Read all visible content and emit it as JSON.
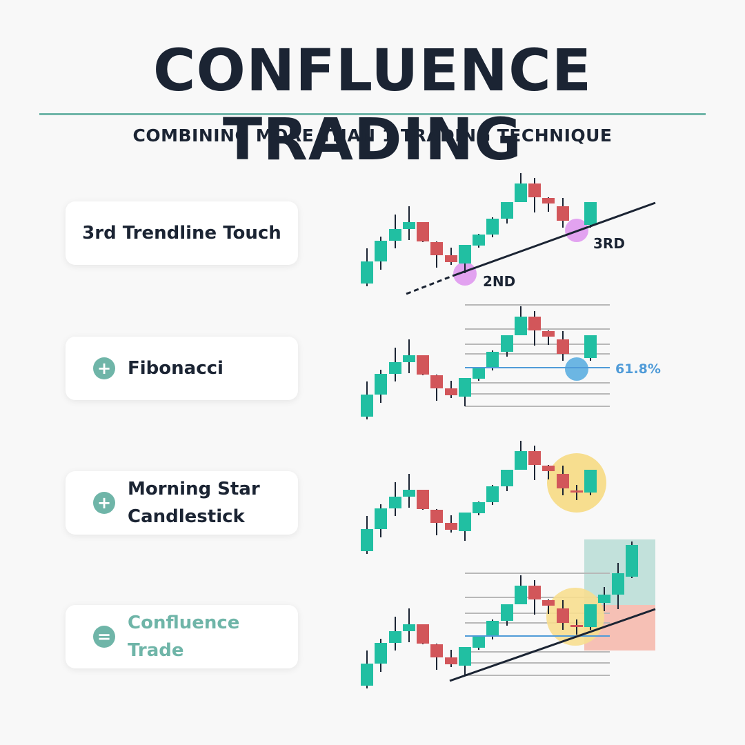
{
  "header": {
    "title": "CONFLUENCE TRADING",
    "subtitle": "COMBINING MORE THAN 1 TRADING TECHNIQUE"
  },
  "steps": [
    {
      "label": "3rd Trendline Touch",
      "operator": ""
    },
    {
      "label": "Fibonacci",
      "operator": "+"
    },
    {
      "label": "Morning Star\nCandlestick",
      "operator": "+"
    },
    {
      "label": "Confluence\nTrade",
      "operator": "="
    }
  ],
  "annotations": {
    "second_touch": "2ND",
    "third_touch": "3RD",
    "fib_level": "61.8%"
  },
  "colors": {
    "bullish": "#21bfa2",
    "bearish": "#d2565a",
    "text_dark": "#1b2433",
    "accent_teal": "#6fb5a8",
    "touch_highlight": "#e2a2f0",
    "fib_highlight": "#6cb6e3",
    "fib_line": "#4f9bd8",
    "pattern_highlight": "#f7de8f",
    "target_zone": "#b9ddd6",
    "stop_zone": "#f5b9ad",
    "grid_line": "#b8b8b8"
  },
  "icons": {
    "plus": "plus-icon",
    "equals": "equals-icon"
  }
}
